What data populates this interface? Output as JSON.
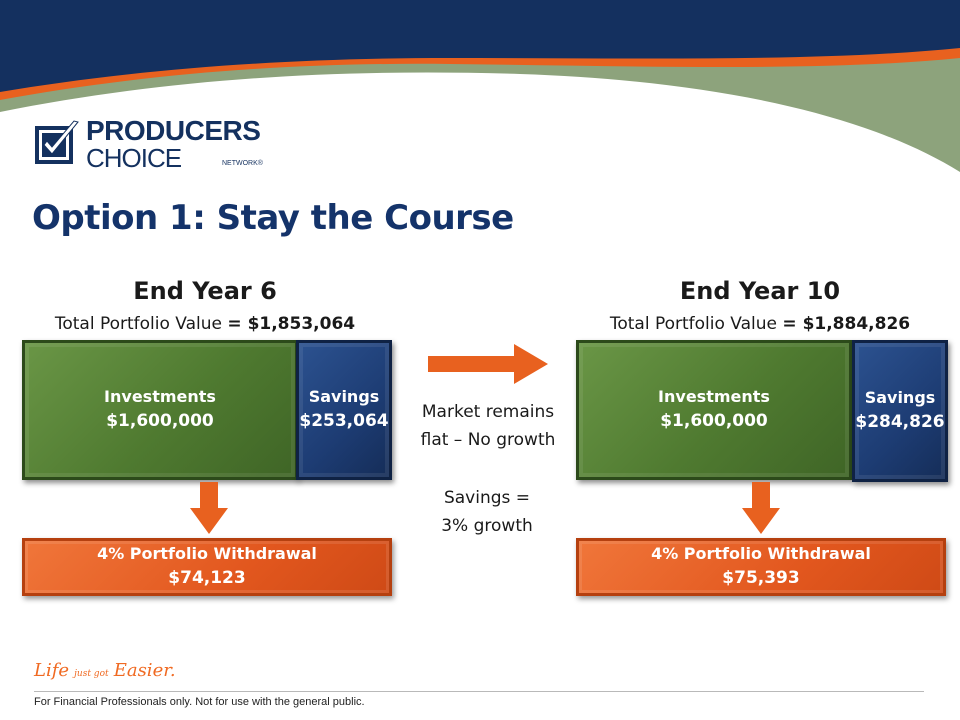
{
  "brand": {
    "logo_line1": "PRODUCERS",
    "logo_line2": "CHOICE",
    "logo_line3": "NETWORK®",
    "colors": {
      "navy": "#14336a",
      "orange": "#e8611f",
      "green": "#5b8a3a",
      "sage": "#8aa37a"
    }
  },
  "title": "Option 1: Stay the Course",
  "left_block": {
    "heading": "End Year 6",
    "total_label": "Total Portfolio Value",
    "total_value": "= $1,853,064",
    "investments_label": "Investments",
    "investments_value": "$1,600,000",
    "savings_label": "Savings",
    "savings_value": "$253,064",
    "withdrawal_label": "4% Portfolio Withdrawal",
    "withdrawal_value": "$74,123"
  },
  "right_block": {
    "heading": "End Year 10",
    "total_label": "Total Portfolio Value",
    "total_value": "= $1,884,826",
    "investments_label": "Investments",
    "investments_value": "$1,600,000",
    "savings_label": "Savings",
    "savings_value": "$284,826",
    "withdrawal_label": "4% Portfolio Withdrawal",
    "withdrawal_value": "$75,393"
  },
  "middle_notes": {
    "market_line1": "Market remains",
    "market_line2": "flat – No growth",
    "savings_line1": "Savings =",
    "savings_line2": "3% growth"
  },
  "icons": {
    "logo": "checkmark-box-icon",
    "transition_arrow": "arrow-right-icon",
    "withdrawal_arrow": "arrow-down-icon"
  },
  "tagline": {
    "part1": "Life",
    "part2": "just got",
    "part3": "Easier."
  },
  "footer": "For Financial Professionals only. Not for use with the general public."
}
